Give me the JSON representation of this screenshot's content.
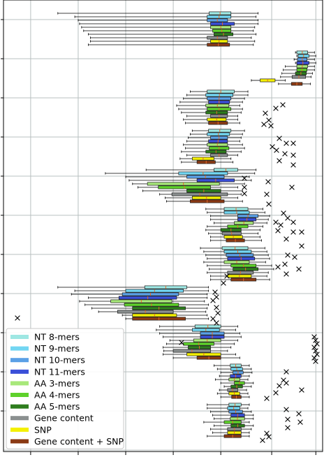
{
  "chart_data": {
    "type": "box",
    "orientation": "horizontal",
    "groups": 11,
    "grid": true,
    "legend_placement": "lower-left",
    "xlim": [
      0,
      470
    ],
    "x_grid": [
      40,
      110,
      180,
      250,
      320,
      395,
      460
    ],
    "series": [
      {
        "name": "NT 8-mers",
        "color": "#9ee7e3"
      },
      {
        "name": "NT 9-mers",
        "color": "#72d6f2"
      },
      {
        "name": "NT 10-mers",
        "color": "#5aa0e6"
      },
      {
        "name": "NT 11-mers",
        "color": "#3a4fd8"
      },
      {
        "name": "AA 3-mers",
        "color": "#a8e87a"
      },
      {
        "name": "AA 4-mers",
        "color": "#5ed12b"
      },
      {
        "name": "AA 5-mers",
        "color": "#2e7d1e"
      },
      {
        "name": "Gene content",
        "color": "#8a8f8f"
      },
      {
        "name": "SNP",
        "color": "#f4f000"
      },
      {
        "name": "Gene content + SNP",
        "color": "#8a3a14"
      }
    ],
    "boxes": [
      [
        [
          80,
          303,
          335,
          375
        ],
        [
          105,
          300,
          335,
          372
        ],
        [
          110,
          300,
          330,
          375
        ],
        [
          112,
          305,
          340,
          375
        ],
        [
          115,
          305,
          335,
          370
        ],
        [
          118,
          308,
          335,
          368
        ],
        [
          125,
          310,
          338,
          372
        ],
        [
          128,
          300,
          330,
          365
        ],
        [
          128,
          305,
          330,
          370
        ],
        [
          125,
          300,
          333,
          368
        ]
      ],
      [
        [
          430,
          432,
          448,
          458
        ],
        [
          432,
          434,
          450,
          460
        ],
        [
          428,
          433,
          447,
          458
        ],
        [
          430,
          432,
          450,
          460
        ],
        [
          415,
          432,
          448,
          458
        ],
        [
          412,
          432,
          447,
          458
        ],
        [
          410,
          430,
          446,
          455
        ],
        [
          408,
          425,
          445,
          453
        ],
        [
          365,
          378,
          400,
          415
        ],
        [
          405,
          424,
          440,
          452
        ]
      ],
      [
        [
          275,
          300,
          340,
          360
        ],
        [
          270,
          298,
          338,
          360
        ],
        [
          265,
          300,
          335,
          355
        ],
        [
          260,
          302,
          333,
          352
        ],
        [
          255,
          298,
          332,
          348
        ],
        [
          258,
          300,
          335,
          352
        ],
        [
          262,
          298,
          330,
          350
        ],
        [
          270,
          305,
          330,
          345
        ],
        [
          265,
          300,
          328,
          345
        ],
        [
          268,
          302,
          330,
          348
        ]
      ],
      [
        [
          278,
          302,
          335,
          355
        ],
        [
          275,
          300,
          333,
          352
        ],
        [
          272,
          305,
          330,
          350
        ],
        [
          270,
          302,
          330,
          348
        ],
        [
          265,
          300,
          330,
          352
        ],
        [
          268,
          303,
          332,
          355
        ],
        [
          262,
          298,
          328,
          350
        ],
        [
          270,
          305,
          330,
          345
        ],
        [
          260,
          278,
          310,
          335
        ],
        [
          262,
          285,
          312,
          338
        ]
      ],
      [
        [
          210,
          310,
          345,
          372
        ],
        [
          150,
          258,
          330,
          370
        ],
        [
          180,
          270,
          325,
          362
        ],
        [
          185,
          285,
          340,
          365
        ],
        [
          190,
          212,
          318,
          355
        ],
        [
          198,
          228,
          305,
          345
        ],
        [
          205,
          270,
          320,
          352
        ],
        [
          230,
          248,
          330,
          350
        ],
        [
          238,
          278,
          320,
          345
        ],
        [
          240,
          275,
          325,
          352
        ]
      ],
      [
        [
          298,
          325,
          360,
          382
        ],
        [
          300,
          325,
          362,
          385
        ],
        [
          305,
          345,
          375,
          392
        ],
        [
          305,
          345,
          372,
          390
        ],
        [
          310,
          340,
          368,
          388
        ],
        [
          300,
          330,
          360,
          382
        ],
        [
          298,
          320,
          350,
          378
        ],
        [
          302,
          322,
          350,
          375
        ],
        [
          305,
          325,
          352,
          378
        ],
        [
          305,
          328,
          355,
          380
        ]
      ],
      [
        [
          290,
          322,
          360,
          385
        ],
        [
          295,
          325,
          365,
          388
        ],
        [
          298,
          328,
          368,
          390
        ],
        [
          300,
          330,
          370,
          392
        ],
        [
          295,
          325,
          362,
          386
        ],
        [
          300,
          335,
          372,
          395
        ],
        [
          303,
          338,
          375,
          398
        ],
        [
          300,
          330,
          368,
          390
        ],
        [
          305,
          330,
          365,
          388
        ],
        [
          305,
          335,
          372,
          392
        ]
      ],
      [
        [
          80,
          208,
          270,
          302
        ],
        [
          105,
          180,
          265,
          302
        ],
        [
          100,
          175,
          258,
          300
        ],
        [
          125,
          170,
          255,
          300
        ],
        [
          112,
          158,
          248,
          296
        ],
        [
          120,
          178,
          258,
          302
        ],
        [
          130,
          190,
          268,
          300
        ],
        [
          140,
          168,
          250,
          298
        ],
        [
          175,
          190,
          255,
          300
        ],
        [
          180,
          190,
          268,
          302
        ]
      ],
      [
        [
          230,
          282,
          320,
          345
        ],
        [
          225,
          278,
          318,
          342
        ],
        [
          230,
          290,
          325,
          348
        ],
        [
          235,
          290,
          325,
          350
        ],
        [
          245,
          280,
          320,
          345
        ],
        [
          240,
          265,
          310,
          340
        ],
        [
          235,
          272,
          305,
          335
        ],
        [
          236,
          250,
          305,
          330
        ],
        [
          235,
          270,
          320,
          342
        ],
        [
          250,
          285,
          320,
          348
        ]
      ],
      [
        [
          310,
          334,
          350,
          362
        ],
        [
          315,
          335,
          352,
          365
        ],
        [
          320,
          338,
          353,
          366
        ],
        [
          318,
          334,
          350,
          362
        ],
        [
          312,
          332,
          348,
          360
        ],
        [
          320,
          340,
          355,
          368
        ],
        [
          325,
          335,
          352,
          365
        ],
        [
          318,
          330,
          345,
          358
        ],
        [
          315,
          332,
          348,
          360
        ],
        [
          320,
          336,
          350,
          362
        ]
      ],
      [
        [
          300,
          332,
          350,
          362
        ],
        [
          300,
          330,
          348,
          360
        ],
        [
          305,
          332,
          352,
          365
        ],
        [
          308,
          335,
          355,
          368
        ],
        [
          310,
          334,
          355,
          368
        ],
        [
          295,
          325,
          350,
          362
        ],
        [
          310,
          335,
          355,
          368
        ],
        [
          305,
          330,
          350,
          365
        ],
        [
          308,
          330,
          350,
          362
        ],
        [
          300,
          325,
          350,
          362
        ]
      ]
    ]
  }
}
